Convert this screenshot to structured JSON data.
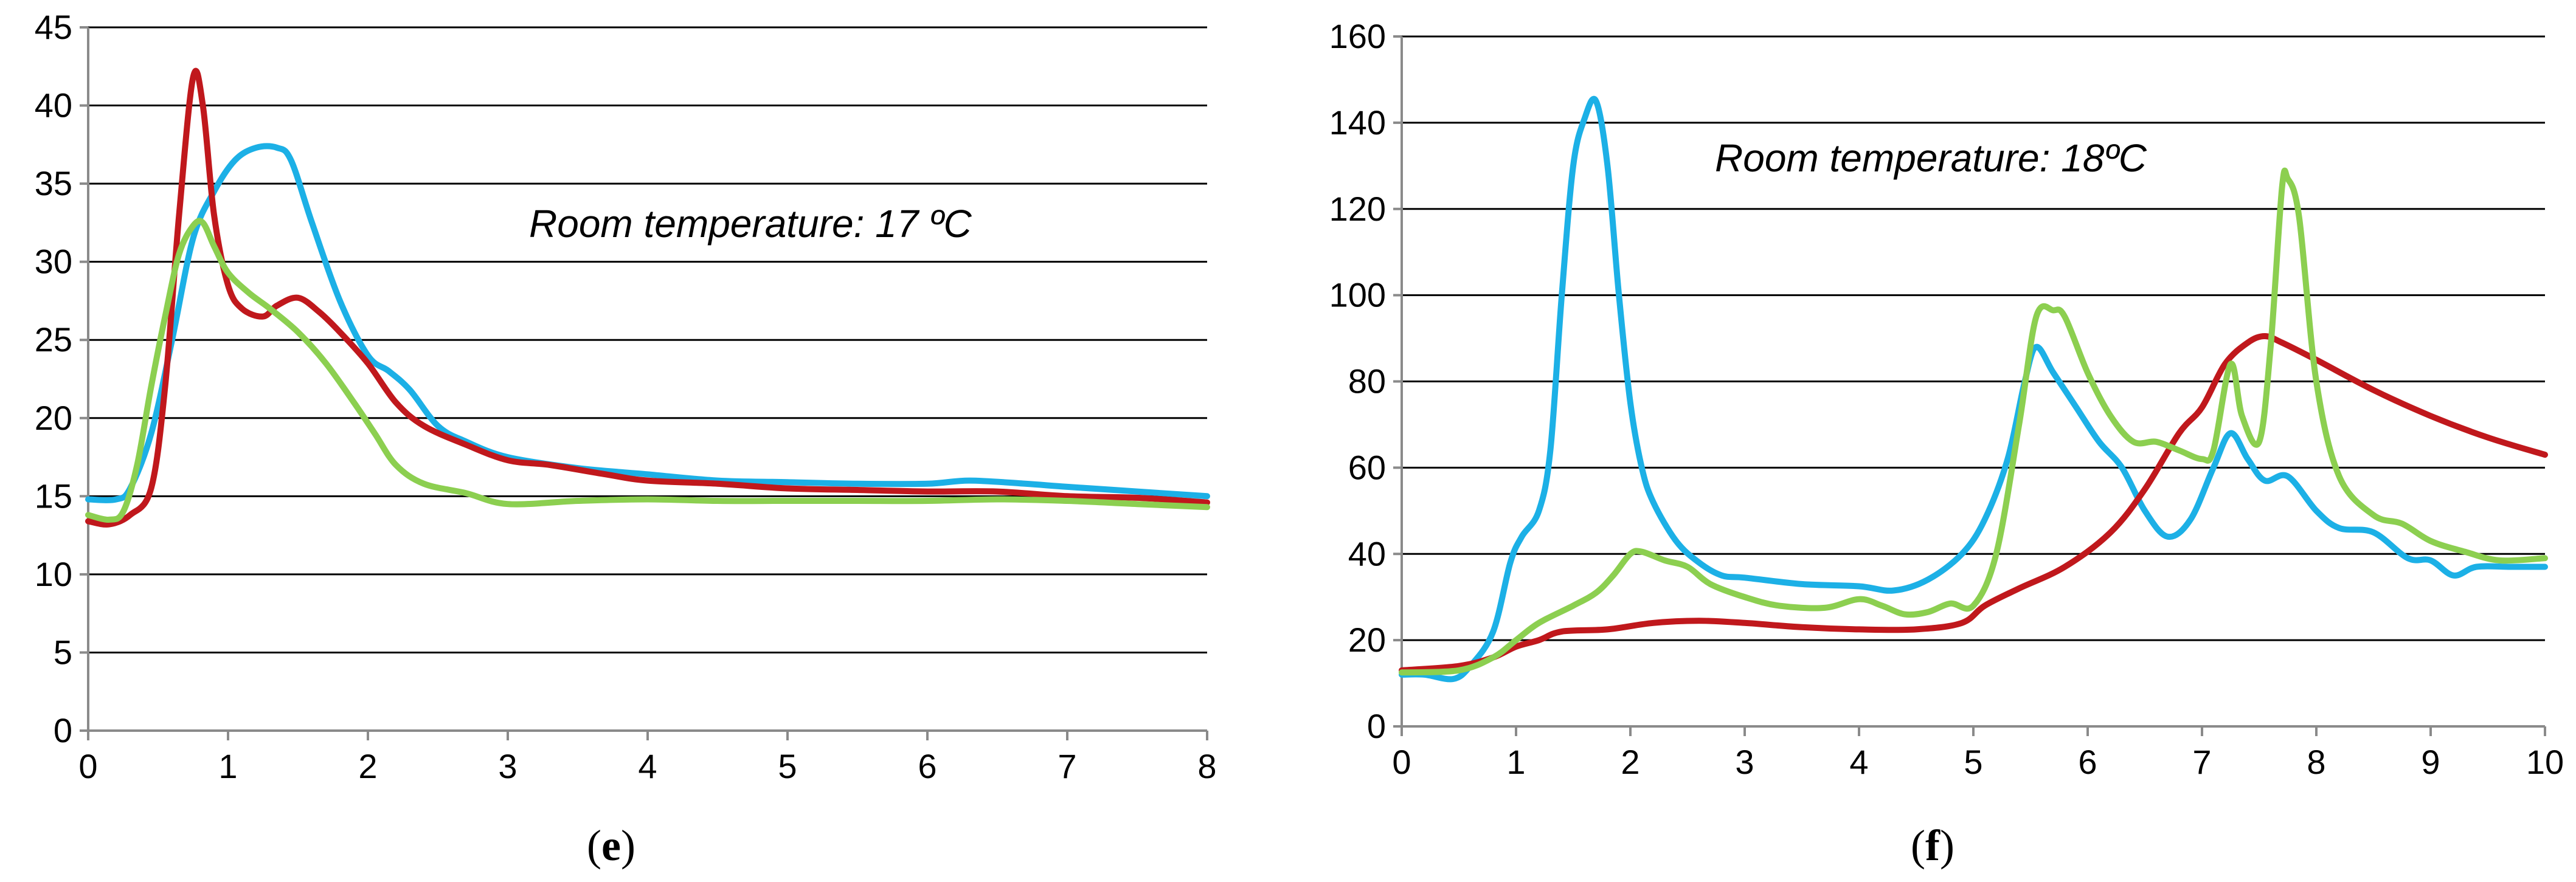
{
  "chart_data": [
    {
      "type": "line",
      "panel_label": "e",
      "annotation": "Room temperature: 17 ºC",
      "xlim": [
        0,
        8
      ],
      "ylim": [
        0,
        45
      ],
      "x_ticks": [
        0,
        1,
        2,
        3,
        4,
        5,
        6,
        7,
        8
      ],
      "y_ticks": [
        0,
        5,
        10,
        15,
        20,
        25,
        30,
        35,
        40,
        45
      ],
      "grid": true,
      "series": [
        {
          "name": "blue",
          "color": "#1cb0e6",
          "points": [
            [
              0,
              14.8
            ],
            [
              0.2,
              14.8
            ],
            [
              0.3,
              15.5
            ],
            [
              0.45,
              19
            ],
            [
              0.6,
              25
            ],
            [
              0.75,
              31.5
            ],
            [
              0.9,
              34.5
            ],
            [
              1.05,
              36.5
            ],
            [
              1.2,
              37.3
            ],
            [
              1.35,
              37.3
            ],
            [
              1.45,
              36.5
            ],
            [
              1.6,
              32.5
            ],
            [
              1.8,
              27.5
            ],
            [
              2.0,
              24
            ],
            [
              2.15,
              23
            ],
            [
              2.3,
              21.8
            ],
            [
              2.5,
              19.5
            ],
            [
              2.7,
              18.5
            ],
            [
              3.0,
              17.5
            ],
            [
              3.5,
              16.8
            ],
            [
              4.0,
              16.4
            ],
            [
              4.5,
              16.0
            ],
            [
              5.0,
              15.9
            ],
            [
              5.5,
              15.8
            ],
            [
              6.0,
              15.8
            ],
            [
              6.3,
              16.0
            ],
            [
              6.7,
              15.8
            ],
            [
              7.0,
              15.6
            ],
            [
              7.5,
              15.3
            ],
            [
              8.0,
              15.0
            ]
          ]
        },
        {
          "name": "red",
          "color": "#c0181c",
          "points": [
            [
              0,
              13.4
            ],
            [
              0.15,
              13.2
            ],
            [
              0.3,
              13.8
            ],
            [
              0.45,
              15.5
            ],
            [
              0.55,
              22
            ],
            [
              0.65,
              33
            ],
            [
              0.75,
              41.8
            ],
            [
              0.82,
              40
            ],
            [
              0.9,
              33
            ],
            [
              1.0,
              28.5
            ],
            [
              1.1,
              27
            ],
            [
              1.25,
              26.5
            ],
            [
              1.35,
              27.2
            ],
            [
              1.5,
              27.7
            ],
            [
              1.65,
              26.8
            ],
            [
              1.8,
              25.5
            ],
            [
              2.0,
              23.5
            ],
            [
              2.2,
              21
            ],
            [
              2.4,
              19.5
            ],
            [
              2.7,
              18.3
            ],
            [
              3.0,
              17.3
            ],
            [
              3.3,
              17.0
            ],
            [
              3.7,
              16.4
            ],
            [
              4.0,
              16.0
            ],
            [
              4.5,
              15.8
            ],
            [
              5.0,
              15.5
            ],
            [
              5.5,
              15.4
            ],
            [
              6.0,
              15.3
            ],
            [
              6.5,
              15.3
            ],
            [
              7.0,
              15.0
            ],
            [
              7.5,
              14.9
            ],
            [
              8.0,
              14.6
            ]
          ]
        },
        {
          "name": "green",
          "color": "#8ccf50",
          "points": [
            [
              0,
              13.8
            ],
            [
              0.15,
              13.5
            ],
            [
              0.25,
              14
            ],
            [
              0.35,
              17
            ],
            [
              0.45,
              22
            ],
            [
              0.55,
              26.5
            ],
            [
              0.65,
              30.5
            ],
            [
              0.75,
              32.3
            ],
            [
              0.82,
              32.5
            ],
            [
              0.9,
              31
            ],
            [
              1.0,
              29.3
            ],
            [
              1.15,
              28
            ],
            [
              1.3,
              27
            ],
            [
              1.5,
              25.5
            ],
            [
              1.7,
              23.5
            ],
            [
              1.9,
              21
            ],
            [
              2.05,
              19
            ],
            [
              2.2,
              17
            ],
            [
              2.4,
              15.8
            ],
            [
              2.7,
              15.2
            ],
            [
              3.0,
              14.5
            ],
            [
              3.5,
              14.7
            ],
            [
              4.0,
              14.8
            ],
            [
              4.5,
              14.7
            ],
            [
              5.0,
              14.7
            ],
            [
              5.5,
              14.7
            ],
            [
              6.0,
              14.7
            ],
            [
              6.5,
              14.8
            ],
            [
              7.0,
              14.7
            ],
            [
              7.5,
              14.5
            ],
            [
              8.0,
              14.3
            ]
          ]
        }
      ]
    },
    {
      "type": "line",
      "panel_label": "f",
      "annotation": "Room temperature: 18ºC",
      "xlim": [
        0,
        10
      ],
      "ylim": [
        0,
        160
      ],
      "x_ticks": [
        0,
        1,
        2,
        3,
        4,
        5,
        6,
        7,
        8,
        9,
        10
      ],
      "y_ticks": [
        0,
        20,
        40,
        60,
        80,
        100,
        120,
        140,
        160
      ],
      "grid": true,
      "series": [
        {
          "name": "blue",
          "color": "#1cb0e6",
          "points": [
            [
              0,
              12
            ],
            [
              0.2,
              12
            ],
            [
              0.45,
              11
            ],
            [
              0.6,
              14
            ],
            [
              0.8,
              22
            ],
            [
              0.95,
              38
            ],
            [
              1.05,
              44
            ],
            [
              1.2,
              50
            ],
            [
              1.3,
              64
            ],
            [
              1.4,
              100
            ],
            [
              1.5,
              130
            ],
            [
              1.6,
              141
            ],
            [
              1.7,
              145
            ],
            [
              1.8,
              130
            ],
            [
              1.9,
              100
            ],
            [
              2.0,
              75
            ],
            [
              2.1,
              60
            ],
            [
              2.2,
              52
            ],
            [
              2.4,
              43
            ],
            [
              2.6,
              38
            ],
            [
              2.8,
              35
            ],
            [
              3.0,
              34.5
            ],
            [
              3.5,
              33
            ],
            [
              4.0,
              32.5
            ],
            [
              4.3,
              31.5
            ],
            [
              4.6,
              34
            ],
            [
              4.9,
              40
            ],
            [
              5.1,
              48
            ],
            [
              5.3,
              62
            ],
            [
              5.45,
              80
            ],
            [
              5.55,
              88
            ],
            [
              5.7,
              82
            ],
            [
              5.9,
              74
            ],
            [
              6.1,
              66
            ],
            [
              6.3,
              60
            ],
            [
              6.5,
              50
            ],
            [
              6.7,
              44
            ],
            [
              6.9,
              48
            ],
            [
              7.1,
              60
            ],
            [
              7.25,
              68
            ],
            [
              7.4,
              62
            ],
            [
              7.55,
              57
            ],
            [
              7.75,
              58
            ],
            [
              8.0,
              50
            ],
            [
              8.2,
              46
            ],
            [
              8.5,
              45
            ],
            [
              8.8,
              39
            ],
            [
              9.0,
              38.5
            ],
            [
              9.2,
              35
            ],
            [
              9.4,
              37
            ],
            [
              9.7,
              37
            ],
            [
              10.0,
              37
            ]
          ]
        },
        {
          "name": "red",
          "color": "#c0181c",
          "points": [
            [
              0,
              13
            ],
            [
              0.5,
              14
            ],
            [
              0.8,
              16
            ],
            [
              1.0,
              18.5
            ],
            [
              1.2,
              20
            ],
            [
              1.4,
              22
            ],
            [
              1.8,
              22.5
            ],
            [
              2.2,
              24
            ],
            [
              2.6,
              24.5
            ],
            [
              3.0,
              24
            ],
            [
              3.5,
              23
            ],
            [
              4.0,
              22.5
            ],
            [
              4.5,
              22.5
            ],
            [
              4.9,
              24
            ],
            [
              5.1,
              28
            ],
            [
              5.4,
              32
            ],
            [
              5.8,
              37
            ],
            [
              6.2,
              45
            ],
            [
              6.5,
              55
            ],
            [
              6.8,
              68
            ],
            [
              7.0,
              74
            ],
            [
              7.2,
              84
            ],
            [
              7.4,
              89
            ],
            [
              7.55,
              90.5
            ],
            [
              7.7,
              89
            ],
            [
              8.0,
              85
            ],
            [
              8.5,
              78
            ],
            [
              9.0,
              72
            ],
            [
              9.5,
              67
            ],
            [
              10.0,
              63
            ]
          ]
        },
        {
          "name": "green",
          "color": "#8ccf50",
          "points": [
            [
              0,
              12.5
            ],
            [
              0.5,
              13
            ],
            [
              0.8,
              16
            ],
            [
              1.0,
              20
            ],
            [
              1.2,
              24
            ],
            [
              1.5,
              28
            ],
            [
              1.7,
              31
            ],
            [
              1.85,
              35
            ],
            [
              2.0,
              40
            ],
            [
              2.1,
              40.5
            ],
            [
              2.3,
              38.5
            ],
            [
              2.5,
              37
            ],
            [
              2.7,
              33
            ],
            [
              3.0,
              30
            ],
            [
              3.3,
              28
            ],
            [
              3.7,
              27.5
            ],
            [
              4.0,
              29.5
            ],
            [
              4.2,
              28
            ],
            [
              4.4,
              26
            ],
            [
              4.6,
              26.5
            ],
            [
              4.8,
              28.5
            ],
            [
              5.0,
              28
            ],
            [
              5.2,
              40
            ],
            [
              5.4,
              70
            ],
            [
              5.55,
              95
            ],
            [
              5.7,
              96.5
            ],
            [
              5.8,
              95
            ],
            [
              6.0,
              82
            ],
            [
              6.2,
              72
            ],
            [
              6.4,
              66
            ],
            [
              6.6,
              66
            ],
            [
              6.8,
              64
            ],
            [
              7.0,
              62
            ],
            [
              7.1,
              64
            ],
            [
              7.25,
              84
            ],
            [
              7.35,
              72
            ],
            [
              7.5,
              66
            ],
            [
              7.6,
              88
            ],
            [
              7.7,
              125
            ],
            [
              7.75,
              127
            ],
            [
              7.85,
              118
            ],
            [
              8.0,
              80
            ],
            [
              8.2,
              58
            ],
            [
              8.5,
              49
            ],
            [
              8.75,
              47
            ],
            [
              9.0,
              43
            ],
            [
              9.3,
              40.5
            ],
            [
              9.6,
              38.5
            ],
            [
              10.0,
              39
            ]
          ]
        }
      ]
    }
  ]
}
